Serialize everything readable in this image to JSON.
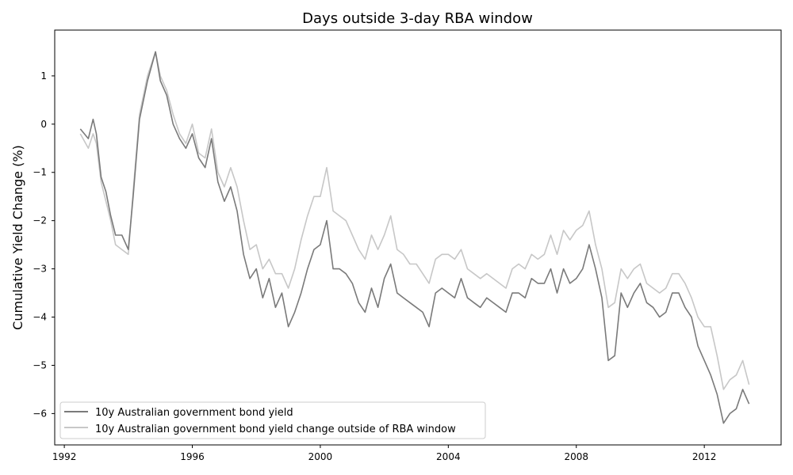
{
  "chart_data": {
    "type": "line",
    "title": "Days outside 3-day RBA window",
    "xlabel": "",
    "ylabel": "Cumulative Yield Change (%)",
    "xlim": [
      1991.7,
      2014.4
    ],
    "ylim": [
      -6.65,
      1.95
    ],
    "xticks": [
      1992,
      1996,
      2000,
      2004,
      2008,
      2012
    ],
    "yticks": [
      1,
      0,
      -1,
      -2,
      -3,
      -4,
      -5,
      -6
    ],
    "ytick_labels": [
      "1",
      "0",
      "−1",
      "−2",
      "−3",
      "−4",
      "−5",
      "−6"
    ],
    "grid": false,
    "legend_position": "lower-left",
    "series": [
      {
        "name": "10y Australian government bond yield",
        "color": "#7a7a7a",
        "x": [
          1992.5,
          1992.75,
          1992.9,
          1993.0,
          1993.15,
          1993.3,
          1993.45,
          1993.6,
          1993.8,
          1994.0,
          1994.15,
          1994.35,
          1994.6,
          1994.85,
          1995.0,
          1995.2,
          1995.4,
          1995.6,
          1995.8,
          1996.0,
          1996.2,
          1996.4,
          1996.6,
          1996.8,
          1997.0,
          1997.2,
          1997.4,
          1997.6,
          1997.8,
          1998.0,
          1998.2,
          1998.4,
          1998.6,
          1998.8,
          1999.0,
          1999.2,
          1999.4,
          1999.6,
          1999.8,
          2000.0,
          2000.2,
          2000.4,
          2000.6,
          2000.8,
          2001.0,
          2001.2,
          2001.4,
          2001.6,
          2001.8,
          2002.0,
          2002.2,
          2002.4,
          2002.6,
          2002.8,
          2003.0,
          2003.2,
          2003.4,
          2003.6,
          2003.8,
          2004.0,
          2004.2,
          2004.4,
          2004.6,
          2004.8,
          2005.0,
          2005.2,
          2005.4,
          2005.6,
          2005.8,
          2006.0,
          2006.2,
          2006.4,
          2006.6,
          2006.8,
          2007.0,
          2007.2,
          2007.4,
          2007.6,
          2007.8,
          2008.0,
          2008.2,
          2008.4,
          2008.6,
          2008.8,
          2009.0,
          2009.2,
          2009.4,
          2009.6,
          2009.8,
          2010.0,
          2010.2,
          2010.4,
          2010.6,
          2010.8,
          2011.0,
          2011.2,
          2011.4,
          2011.6,
          2011.8,
          2012.0,
          2012.2,
          2012.4,
          2012.6,
          2012.8,
          2013.0,
          2013.2,
          2013.4
        ],
        "y": [
          -0.1,
          -0.3,
          0.1,
          -0.2,
          -1.1,
          -1.4,
          -1.9,
          -2.3,
          -2.3,
          -2.6,
          -1.5,
          0.1,
          0.9,
          1.5,
          0.9,
          0.6,
          0.0,
          -0.3,
          -0.5,
          -0.2,
          -0.7,
          -0.9,
          -0.3,
          -1.2,
          -1.6,
          -1.3,
          -1.8,
          -2.7,
          -3.2,
          -3.0,
          -3.6,
          -3.2,
          -3.8,
          -3.5,
          -4.2,
          -3.9,
          -3.5,
          -3.0,
          -2.6,
          -2.5,
          -2.0,
          -3.0,
          -3.0,
          -3.1,
          -3.3,
          -3.7,
          -3.9,
          -3.4,
          -3.8,
          -3.2,
          -2.9,
          -3.5,
          -3.6,
          -3.7,
          -3.8,
          -3.9,
          -4.2,
          -3.5,
          -3.4,
          -3.5,
          -3.6,
          -3.2,
          -3.6,
          -3.7,
          -3.8,
          -3.6,
          -3.7,
          -3.8,
          -3.9,
          -3.5,
          -3.5,
          -3.6,
          -3.2,
          -3.3,
          -3.3,
          -3.0,
          -3.5,
          -3.0,
          -3.3,
          -3.2,
          -3.0,
          -2.5,
          -3.0,
          -3.6,
          -4.9,
          -4.8,
          -3.5,
          -3.8,
          -3.5,
          -3.3,
          -3.7,
          -3.8,
          -4.0,
          -3.9,
          -3.5,
          -3.5,
          -3.8,
          -4.0,
          -4.6,
          -4.9,
          -5.2,
          -5.6,
          -6.2,
          -6.0,
          -5.9,
          -5.5,
          -5.8
        ]
      },
      {
        "name": "10y Australian government bond yield change outside of RBA window",
        "color": "#c7c7c7",
        "x": [
          1992.5,
          1992.75,
          1992.9,
          1993.0,
          1993.15,
          1993.3,
          1993.45,
          1993.6,
          1993.8,
          1994.0,
          1994.15,
          1994.35,
          1994.6,
          1994.85,
          1995.0,
          1995.2,
          1995.4,
          1995.6,
          1995.8,
          1996.0,
          1996.2,
          1996.4,
          1996.6,
          1996.8,
          1997.0,
          1997.2,
          1997.4,
          1997.6,
          1997.8,
          1998.0,
          1998.2,
          1998.4,
          1998.6,
          1998.8,
          1999.0,
          1999.2,
          1999.4,
          1999.6,
          1999.8,
          2000.0,
          2000.2,
          2000.4,
          2000.6,
          2000.8,
          2001.0,
          2001.2,
          2001.4,
          2001.6,
          2001.8,
          2002.0,
          2002.2,
          2002.4,
          2002.6,
          2002.8,
          2003.0,
          2003.2,
          2003.4,
          2003.6,
          2003.8,
          2004.0,
          2004.2,
          2004.4,
          2004.6,
          2004.8,
          2005.0,
          2005.2,
          2005.4,
          2005.6,
          2005.8,
          2006.0,
          2006.2,
          2006.4,
          2006.6,
          2006.8,
          2007.0,
          2007.2,
          2007.4,
          2007.6,
          2007.8,
          2008.0,
          2008.2,
          2008.4,
          2008.6,
          2008.8,
          2009.0,
          2009.2,
          2009.4,
          2009.6,
          2009.8,
          2010.0,
          2010.2,
          2010.4,
          2010.6,
          2010.8,
          2011.0,
          2011.2,
          2011.4,
          2011.6,
          2011.8,
          2012.0,
          2012.2,
          2012.4,
          2012.6,
          2012.8,
          2013.0,
          2013.2,
          2013.4
        ],
        "y": [
          -0.2,
          -0.5,
          -0.2,
          -0.4,
          -1.2,
          -1.6,
          -2.0,
          -2.5,
          -2.6,
          -2.7,
          -1.4,
          0.2,
          1.0,
          1.5,
          1.0,
          0.7,
          0.2,
          -0.2,
          -0.4,
          0.0,
          -0.6,
          -0.7,
          -0.1,
          -1.0,
          -1.3,
          -0.9,
          -1.3,
          -2.0,
          -2.6,
          -2.5,
          -3.0,
          -2.8,
          -3.1,
          -3.1,
          -3.4,
          -3.0,
          -2.4,
          -1.9,
          -1.5,
          -1.5,
          -0.9,
          -1.8,
          -1.9,
          -2.0,
          -2.3,
          -2.6,
          -2.8,
          -2.3,
          -2.6,
          -2.3,
          -1.9,
          -2.6,
          -2.7,
          -2.9,
          -2.9,
          -3.1,
          -3.3,
          -2.8,
          -2.7,
          -2.7,
          -2.8,
          -2.6,
          -3.0,
          -3.1,
          -3.2,
          -3.1,
          -3.2,
          -3.3,
          -3.4,
          -3.0,
          -2.9,
          -3.0,
          -2.7,
          -2.8,
          -2.7,
          -2.3,
          -2.7,
          -2.2,
          -2.4,
          -2.2,
          -2.1,
          -1.8,
          -2.5,
          -3.0,
          -3.8,
          -3.7,
          -3.0,
          -3.2,
          -3.0,
          -2.9,
          -3.3,
          -3.4,
          -3.5,
          -3.4,
          -3.1,
          -3.1,
          -3.3,
          -3.6,
          -4.0,
          -4.2,
          -4.2,
          -4.8,
          -5.5,
          -5.3,
          -5.2,
          -4.9,
          -5.4
        ]
      }
    ]
  }
}
